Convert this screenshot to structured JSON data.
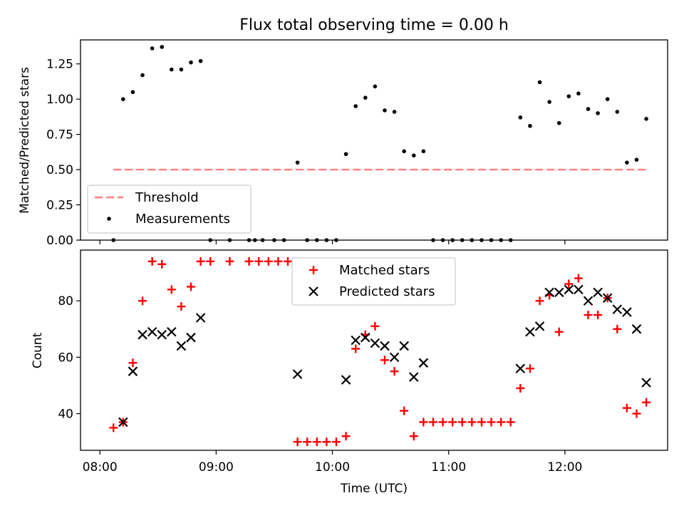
{
  "colors": {
    "threshold": "#ff7f7f",
    "measurement": "#000000",
    "matched": "#ff0000",
    "predicted": "#000000",
    "legend_border": "#cccccc"
  },
  "chart_data": [
    {
      "type": "scatter",
      "title": "Flux total observing time = 0.00 h",
      "xlabel": "",
      "ylabel": "Matched/Predicted stars",
      "ylim": [
        0.0,
        1.42
      ],
      "xlim": [
        "07:50",
        "12:53"
      ],
      "yticks": [
        0.0,
        0.25,
        0.5,
        0.75,
        1.0,
        1.25
      ],
      "ytick_labels": [
        "0.00",
        "0.25",
        "0.50",
        "0.75",
        "1.00",
        "1.25"
      ],
      "legend": {
        "placement": "lower-left",
        "entries": [
          "Threshold",
          "Measurements"
        ]
      },
      "series": [
        {
          "name": "Threshold",
          "kind": "dashed-line",
          "points": [
            [
              "08:07",
              0.5
            ],
            [
              "12:42",
              0.5
            ]
          ]
        },
        {
          "name": "Measurements",
          "kind": "dots",
          "points": [
            [
              "08:07",
              0.0
            ],
            [
              "08:12",
              1.0
            ],
            [
              "08:17",
              1.05
            ],
            [
              "08:22",
              1.17
            ],
            [
              "08:27",
              1.36
            ],
            [
              "08:32",
              1.37
            ],
            [
              "08:37",
              1.21
            ],
            [
              "08:42",
              1.21
            ],
            [
              "08:47",
              1.26
            ],
            [
              "08:52",
              1.27
            ],
            [
              "08:57",
              0.0
            ],
            [
              "09:07",
              0.0
            ],
            [
              "09:17",
              0.0
            ],
            [
              "09:20",
              0.0
            ],
            [
              "09:24",
              0.0
            ],
            [
              "09:30",
              0.0
            ],
            [
              "09:35",
              0.0
            ],
            [
              "09:42",
              0.55
            ],
            [
              "09:47",
              0.0
            ],
            [
              "09:52",
              0.0
            ],
            [
              "09:57",
              0.0
            ],
            [
              "10:02",
              0.0
            ],
            [
              "10:07",
              0.61
            ],
            [
              "10:12",
              0.95
            ],
            [
              "10:17",
              1.01
            ],
            [
              "10:22",
              1.09
            ],
            [
              "10:27",
              0.92
            ],
            [
              "10:32",
              0.91
            ],
            [
              "10:37",
              0.63
            ],
            [
              "10:42",
              0.6
            ],
            [
              "10:47",
              0.63
            ],
            [
              "10:52",
              0.0
            ],
            [
              "10:57",
              0.0
            ],
            [
              "11:02",
              0.0
            ],
            [
              "11:07",
              0.0
            ],
            [
              "11:12",
              0.0
            ],
            [
              "11:17",
              0.0
            ],
            [
              "11:22",
              0.0
            ],
            [
              "11:27",
              0.0
            ],
            [
              "11:32",
              0.0
            ],
            [
              "11:37",
              0.87
            ],
            [
              "11:42",
              0.81
            ],
            [
              "11:47",
              1.12
            ],
            [
              "11:52",
              0.98
            ],
            [
              "11:57",
              0.83
            ],
            [
              "12:02",
              1.02
            ],
            [
              "12:07",
              1.04
            ],
            [
              "12:12",
              0.93
            ],
            [
              "12:17",
              0.9
            ],
            [
              "12:22",
              1.0
            ],
            [
              "12:27",
              0.91
            ],
            [
              "12:32",
              0.55
            ],
            [
              "12:37",
              0.57
            ],
            [
              "12:42",
              0.86
            ]
          ]
        }
      ]
    },
    {
      "type": "scatter",
      "title": "",
      "xlabel": "Time (UTC)",
      "ylabel": "Count",
      "ylim": [
        27,
        98
      ],
      "xlim": [
        "07:50",
        "12:53"
      ],
      "yticks": [
        40,
        60,
        80
      ],
      "xticks": [
        "08:00",
        "09:00",
        "10:00",
        "11:00",
        "12:00"
      ],
      "legend": {
        "placement": "top-center",
        "entries": [
          "Matched stars",
          "Predicted stars"
        ]
      },
      "series": [
        {
          "name": "Matched stars",
          "marker": "plus",
          "points": [
            [
              "08:07",
              35
            ],
            [
              "08:12",
              37
            ],
            [
              "08:17",
              58
            ],
            [
              "08:22",
              80
            ],
            [
              "08:27",
              94
            ],
            [
              "08:32",
              93
            ],
            [
              "08:37",
              84
            ],
            [
              "08:42",
              78
            ],
            [
              "08:47",
              85
            ],
            [
              "08:52",
              94
            ],
            [
              "08:57",
              94
            ],
            [
              "09:07",
              94
            ],
            [
              "09:17",
              94
            ],
            [
              "09:22",
              94
            ],
            [
              "09:27",
              94
            ],
            [
              "09:32",
              94
            ],
            [
              "09:37",
              94
            ],
            [
              "09:42",
              30
            ],
            [
              "09:47",
              30
            ],
            [
              "09:52",
              30
            ],
            [
              "09:57",
              30
            ],
            [
              "10:02",
              30
            ],
            [
              "10:07",
              32
            ],
            [
              "10:12",
              63
            ],
            [
              "10:17",
              68
            ],
            [
              "10:22",
              71
            ],
            [
              "10:27",
              59
            ],
            [
              "10:32",
              55
            ],
            [
              "10:37",
              41
            ],
            [
              "10:42",
              32
            ],
            [
              "10:47",
              37
            ],
            [
              "10:52",
              37
            ],
            [
              "10:57",
              37
            ],
            [
              "11:02",
              37
            ],
            [
              "11:07",
              37
            ],
            [
              "11:12",
              37
            ],
            [
              "11:17",
              37
            ],
            [
              "11:22",
              37
            ],
            [
              "11:27",
              37
            ],
            [
              "11:32",
              37
            ],
            [
              "11:37",
              49
            ],
            [
              "11:42",
              56
            ],
            [
              "11:47",
              80
            ],
            [
              "11:52",
              82
            ],
            [
              "11:57",
              69
            ],
            [
              "12:02",
              86
            ],
            [
              "12:07",
              88
            ],
            [
              "12:12",
              75
            ],
            [
              "12:17",
              75
            ],
            [
              "12:22",
              81
            ],
            [
              "12:27",
              70
            ],
            [
              "12:32",
              42
            ],
            [
              "12:37",
              40
            ],
            [
              "12:42",
              44
            ]
          ]
        },
        {
          "name": "Predicted stars",
          "marker": "x",
          "points": [
            [
              "08:12",
              37
            ],
            [
              "08:17",
              55
            ],
            [
              "08:22",
              68
            ],
            [
              "08:27",
              69
            ],
            [
              "08:32",
              68
            ],
            [
              "08:37",
              69
            ],
            [
              "08:42",
              64
            ],
            [
              "08:47",
              67
            ],
            [
              "08:52",
              74
            ],
            [
              "09:42",
              54
            ],
            [
              "10:07",
              52
            ],
            [
              "10:12",
              66
            ],
            [
              "10:17",
              67
            ],
            [
              "10:22",
              65
            ],
            [
              "10:27",
              64
            ],
            [
              "10:32",
              60
            ],
            [
              "10:37",
              64
            ],
            [
              "10:42",
              53
            ],
            [
              "10:47",
              58
            ],
            [
              "11:37",
              56
            ],
            [
              "11:42",
              69
            ],
            [
              "11:47",
              71
            ],
            [
              "11:52",
              83
            ],
            [
              "11:57",
              83
            ],
            [
              "12:02",
              84
            ],
            [
              "12:07",
              84
            ],
            [
              "12:12",
              80
            ],
            [
              "12:17",
              83
            ],
            [
              "12:22",
              81
            ],
            [
              "12:27",
              77
            ],
            [
              "12:32",
              76
            ],
            [
              "12:37",
              70
            ],
            [
              "12:42",
              51
            ]
          ]
        }
      ]
    }
  ]
}
